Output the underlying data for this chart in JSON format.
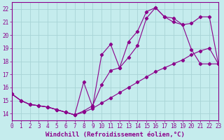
{
  "xlabel": "Windchill (Refroidissement éolien,°C)",
  "background_color": "#c5eced",
  "grid_color": "#a8d4d6",
  "line_color": "#8b008b",
  "xlim": [
    0,
    23
  ],
  "ylim": [
    13.5,
    22.5
  ],
  "xticks": [
    0,
    1,
    2,
    3,
    4,
    5,
    6,
    7,
    8,
    9,
    10,
    11,
    12,
    13,
    14,
    15,
    16,
    17,
    18,
    19,
    20,
    21,
    22,
    23
  ],
  "yticks": [
    14,
    15,
    16,
    17,
    18,
    19,
    20,
    21,
    22
  ],
  "line1_x": [
    0,
    1,
    2,
    3,
    4,
    5,
    6,
    7,
    8,
    9,
    10,
    11,
    12,
    13,
    14,
    15,
    16,
    17,
    18,
    19,
    20,
    21,
    22,
    23
  ],
  "line1_y": [
    15.5,
    15.0,
    14.7,
    14.6,
    14.5,
    14.3,
    14.1,
    13.9,
    14.1,
    14.4,
    14.8,
    15.2,
    15.6,
    16.0,
    16.4,
    16.8,
    17.2,
    17.5,
    17.8,
    18.1,
    18.5,
    18.8,
    19.0,
    17.8
  ],
  "line2_x": [
    0,
    1,
    2,
    3,
    4,
    5,
    6,
    7,
    8,
    9,
    10,
    11,
    12,
    13,
    14,
    15,
    16,
    17,
    18,
    19,
    20,
    21,
    22,
    23
  ],
  "line2_y": [
    15.5,
    15.0,
    14.7,
    14.6,
    14.5,
    14.3,
    14.1,
    13.9,
    16.4,
    14.5,
    18.5,
    19.3,
    17.5,
    19.5,
    20.3,
    21.8,
    22.1,
    21.4,
    21.3,
    20.8,
    18.9,
    17.8,
    17.8,
    17.8
  ],
  "line3_x": [
    0,
    1,
    2,
    3,
    4,
    5,
    6,
    7,
    8,
    9,
    10,
    11,
    12,
    13,
    14,
    15,
    16,
    17,
    18,
    19,
    20,
    21,
    22,
    23
  ],
  "line3_y": [
    15.5,
    15.0,
    14.7,
    14.6,
    14.5,
    14.3,
    14.1,
    13.9,
    14.2,
    14.6,
    16.2,
    17.3,
    17.5,
    18.3,
    19.2,
    21.3,
    22.1,
    21.4,
    21.0,
    20.8,
    20.9,
    21.4,
    21.4,
    17.8
  ],
  "tick_fontsize": 5.5,
  "xlabel_fontsize": 6.5
}
